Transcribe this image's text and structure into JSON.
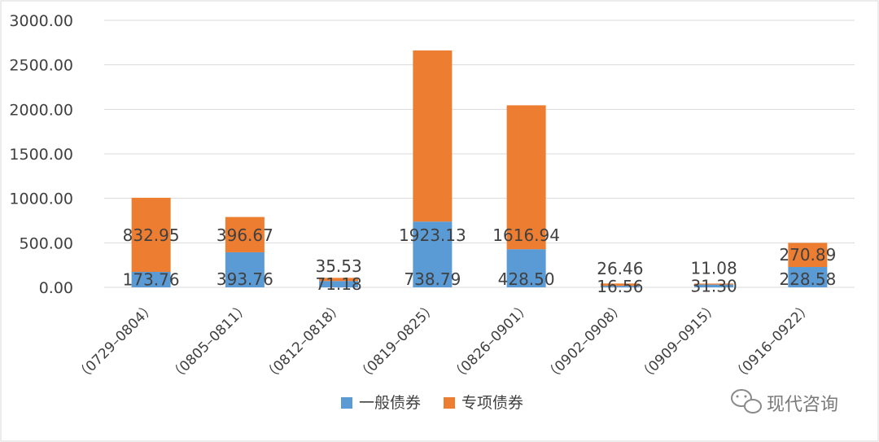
{
  "chart_data": {
    "type": "bar",
    "stacked": true,
    "categories": [
      "（0729–0804）",
      "（0805–0811）",
      "（0812–0818）",
      "（0819–0825）",
      "（0826–0901）",
      "（0902–0908）",
      "（0909–0915）",
      "（0916–0922）"
    ],
    "series": [
      {
        "name": "一般债券",
        "color": "#5B9BD5",
        "values": [
          173.76,
          393.76,
          71.18,
          738.79,
          428.5,
          16.56,
          31.3,
          228.58
        ]
      },
      {
        "name": "专项债券",
        "color": "#ED7D31",
        "values": [
          832.95,
          396.67,
          35.53,
          1923.13,
          1616.94,
          26.46,
          11.08,
          270.89
        ]
      }
    ],
    "data_labels": [
      [
        "173.76",
        "393.76",
        "71.18",
        "738.79",
        "428.50",
        "16.56",
        "31.30",
        "228.58"
      ],
      [
        "832.95",
        "396.67",
        "35.53",
        "1923.13",
        "1616.94",
        "26.46",
        "11.08",
        "270.89"
      ]
    ],
    "yticks": [
      "0.00",
      "500.00",
      "1000.00",
      "1500.00",
      "2000.00",
      "2500.00",
      "3000.00"
    ],
    "ylim": [
      0,
      3000
    ],
    "grid": true,
    "legend": "bottom-center"
  },
  "watermark": {
    "text": "现代咨询",
    "icon": "wechat-icon"
  }
}
